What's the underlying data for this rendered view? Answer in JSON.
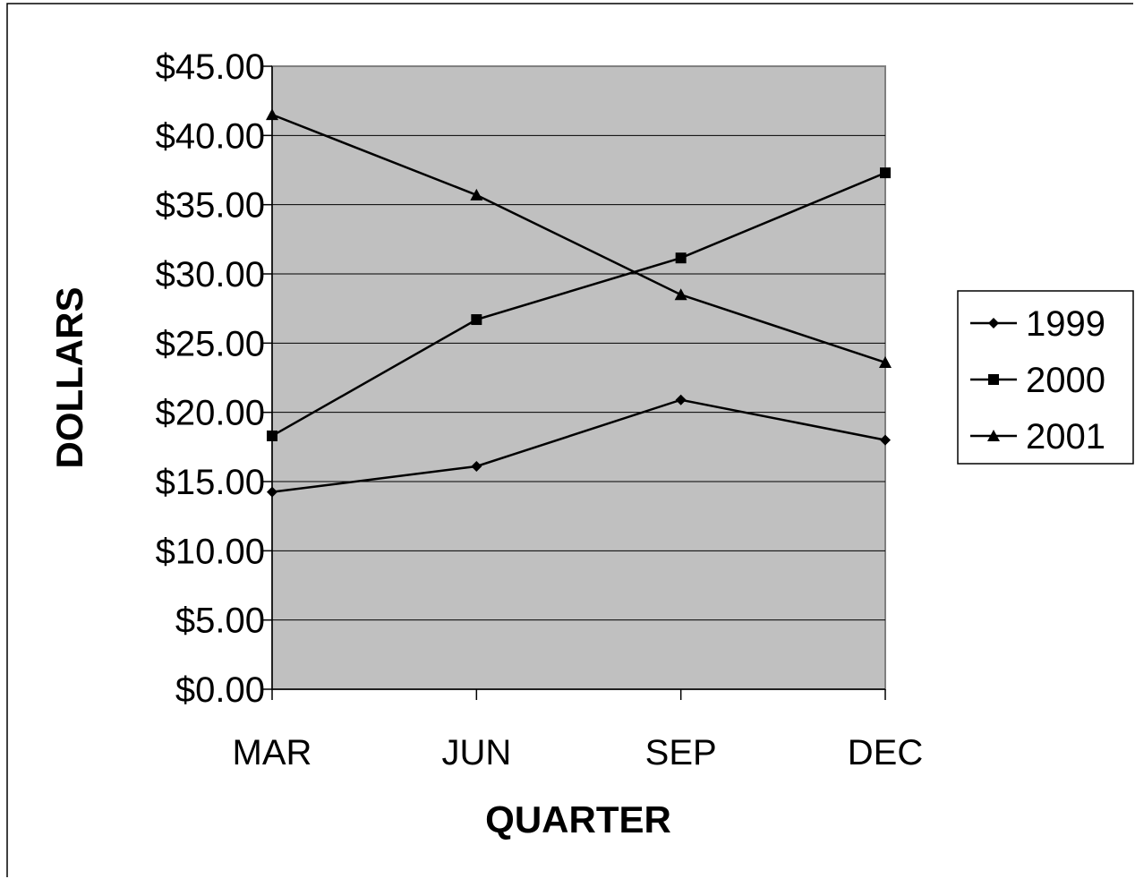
{
  "chart_data": {
    "type": "line",
    "categories": [
      "MAR",
      "JUN",
      "SEP",
      "DEC"
    ],
    "series": [
      {
        "name": "1999",
        "marker": "diamond",
        "values": [
          14.25,
          16.1,
          20.9,
          18.0
        ]
      },
      {
        "name": "2000",
        "marker": "square",
        "values": [
          18.3,
          26.7,
          31.15,
          37.3
        ]
      },
      {
        "name": "2001",
        "marker": "triangle",
        "values": [
          41.5,
          35.7,
          28.5,
          23.6
        ]
      }
    ],
    "title": "",
    "xlabel": "QUARTER",
    "ylabel": "DOLLARS",
    "ylim": [
      0,
      45
    ],
    "yticks": [
      0,
      5,
      10,
      15,
      20,
      25,
      30,
      35,
      40,
      45
    ],
    "ytick_labels": [
      "$0.00",
      "$5.00",
      "$10.00",
      "$15.00",
      "$20.00",
      "$25.00",
      "$30.00",
      "$35.00",
      "$40.00",
      "$45.00"
    ],
    "grid": true,
    "legend_position": "right",
    "plot_background": "#c0c0c0",
    "line_color": "#000000"
  }
}
